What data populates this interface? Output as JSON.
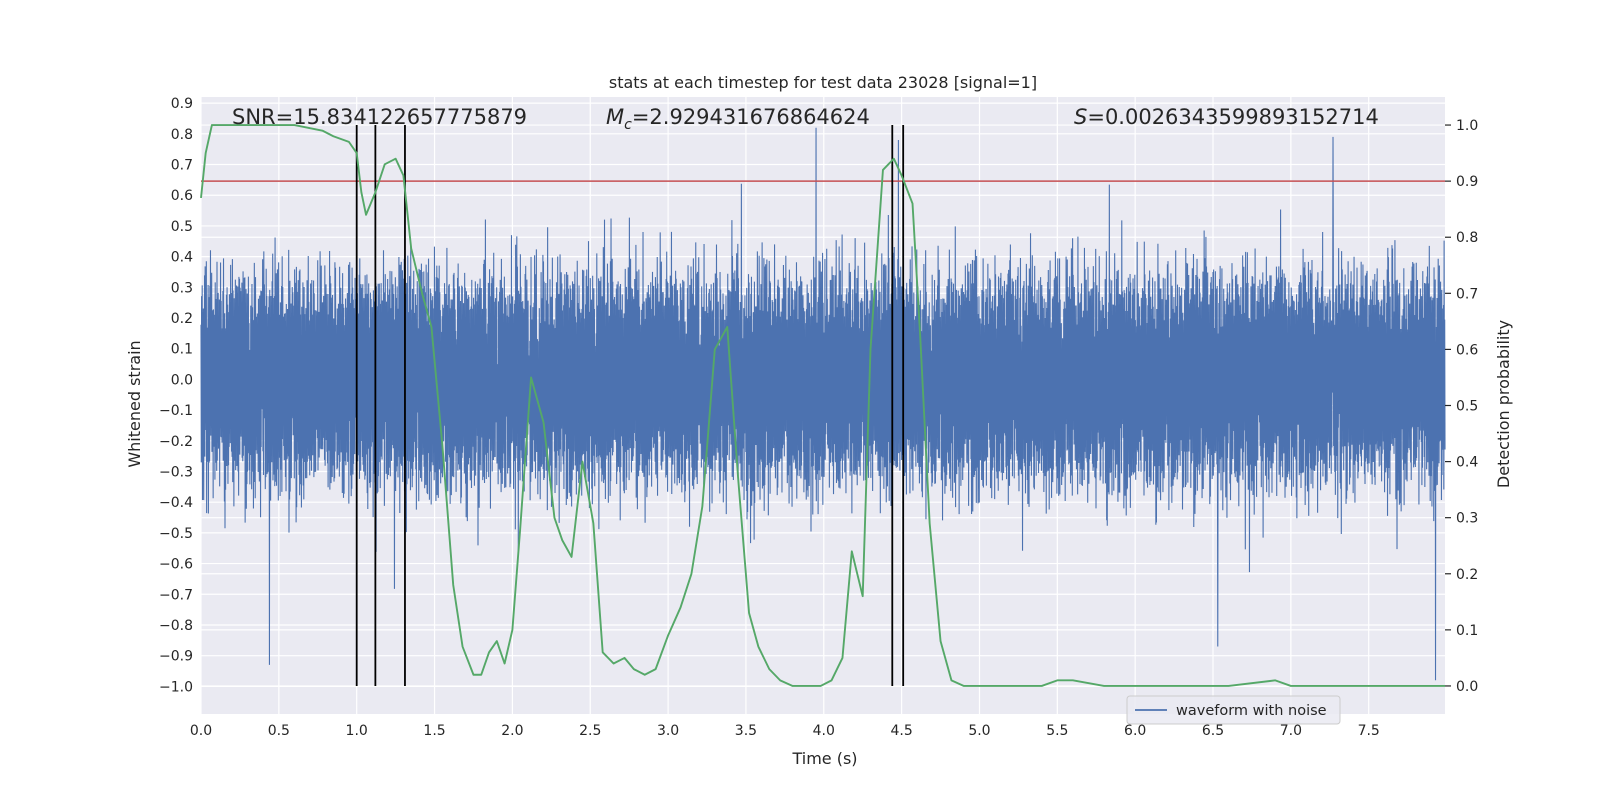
{
  "chart_data": {
    "type": "line",
    "title": "stats at each timestep for test data 23028 [signal=1]",
    "xlabel": "Time (s)",
    "ylabel_left": "Whitened strain",
    "ylabel_right": "Detection probability",
    "xlim": [
      0.0,
      7.99
    ],
    "ylim_left": [
      -1.09,
      0.92
    ],
    "ylim_right": [
      -0.05,
      1.05
    ],
    "grid": true,
    "legend_placement": "lower center-right",
    "x_ticks": [
      "0.0",
      "0.5",
      "1.0",
      "1.5",
      "2.0",
      "2.5",
      "3.0",
      "3.5",
      "4.0",
      "4.5",
      "5.0",
      "5.5",
      "6.0",
      "6.5",
      "7.0",
      "7.5"
    ],
    "y_left_ticks": [
      "0.9",
      "0.8",
      "0.7",
      "0.6",
      "0.5",
      "0.4",
      "0.3",
      "0.2",
      "0.1",
      "0.0",
      "−0.1",
      "−0.2",
      "−0.3",
      "−0.4",
      "−0.5",
      "−0.6",
      "−0.7",
      "−0.8",
      "−0.9",
      "−1.0"
    ],
    "y_right_ticks": [
      "1.0",
      "0.9",
      "0.8",
      "0.7",
      "0.6",
      "0.5",
      "0.4",
      "0.3",
      "0.2",
      "0.1",
      "0.0"
    ],
    "annotations": {
      "snr": "SNR=15.834122657775879",
      "mc_symbol": "M",
      "mc_sub": "c",
      "mc_value": "=2.929431676864624",
      "s_symbol": "S",
      "s_value": "=0.0026343599893152714"
    },
    "series": [
      {
        "name": "waveform with noise",
        "axis": "left",
        "color": "#4c72b0",
        "style": "dense noisy strain, core amplitude about ±0.28, spikes to about ±0.8",
        "x_range": [
          0.0,
          7.99
        ],
        "core_amplitude": 0.28,
        "extremes": [
          {
            "x": 0.44,
            "y": -0.93
          },
          {
            "x": 3.95,
            "y": 0.82
          },
          {
            "x": 4.48,
            "y": 0.78
          },
          {
            "x": 6.53,
            "y": -0.87
          },
          {
            "x": 7.27,
            "y": 0.79
          },
          {
            "x": 7.93,
            "y": -0.98
          }
        ]
      },
      {
        "axis": "right",
        "color": "#55a868",
        "x": [
          0.0,
          0.03,
          0.07,
          0.12,
          0.2,
          0.4,
          0.6,
          0.78,
          0.85,
          0.95,
          1.0,
          1.03,
          1.06,
          1.12,
          1.18,
          1.25,
          1.3,
          1.35,
          1.42,
          1.48,
          1.55,
          1.62,
          1.68,
          1.75,
          1.8,
          1.85,
          1.9,
          1.95,
          2.0,
          2.05,
          2.12,
          2.2,
          2.27,
          2.32,
          2.38,
          2.45,
          2.52,
          2.58,
          2.65,
          2.72,
          2.78,
          2.85,
          2.92,
          3.0,
          3.08,
          3.15,
          3.22,
          3.3,
          3.38,
          3.45,
          3.52,
          3.58,
          3.65,
          3.72,
          3.8,
          3.9,
          3.98,
          4.05,
          4.12,
          4.18,
          4.25,
          4.3,
          4.38,
          4.45,
          4.5,
          4.57,
          4.62,
          4.68,
          4.75,
          4.82,
          4.9,
          5.0,
          5.2,
          5.4,
          5.5,
          5.6,
          5.8,
          6.0,
          6.3,
          6.6,
          6.9,
          7.0,
          7.2,
          7.5,
          7.99
        ],
        "values": [
          0.87,
          0.95,
          1.0,
          1.0,
          1.0,
          1.0,
          1.0,
          0.99,
          0.98,
          0.97,
          0.95,
          0.88,
          0.84,
          0.88,
          0.93,
          0.94,
          0.91,
          0.78,
          0.7,
          0.64,
          0.43,
          0.18,
          0.07,
          0.02,
          0.02,
          0.06,
          0.08,
          0.04,
          0.1,
          0.28,
          0.55,
          0.47,
          0.3,
          0.26,
          0.23,
          0.4,
          0.29,
          0.06,
          0.04,
          0.05,
          0.03,
          0.02,
          0.03,
          0.09,
          0.14,
          0.2,
          0.32,
          0.6,
          0.64,
          0.37,
          0.13,
          0.07,
          0.03,
          0.01,
          0.0,
          0.0,
          0.0,
          0.01,
          0.05,
          0.24,
          0.16,
          0.6,
          0.92,
          0.94,
          0.91,
          0.86,
          0.62,
          0.29,
          0.08,
          0.01,
          0.0,
          0.0,
          0.0,
          0.0,
          0.01,
          0.01,
          0.0,
          0.0,
          0.0,
          0.0,
          0.01,
          0.0,
          0.0,
          0.0,
          0.0
        ]
      }
    ],
    "threshold": {
      "axis": "right",
      "y": 0.9,
      "color": "#c44e52"
    },
    "vertical_markers": {
      "x": [
        1.0,
        1.12,
        1.31,
        4.44,
        4.51
      ],
      "y_bottom": 0.0,
      "y_top": 1.0,
      "axis": "right",
      "color": "#000000"
    },
    "legend": [
      {
        "label": "waveform with noise",
        "color": "#4c72b0"
      }
    ]
  }
}
